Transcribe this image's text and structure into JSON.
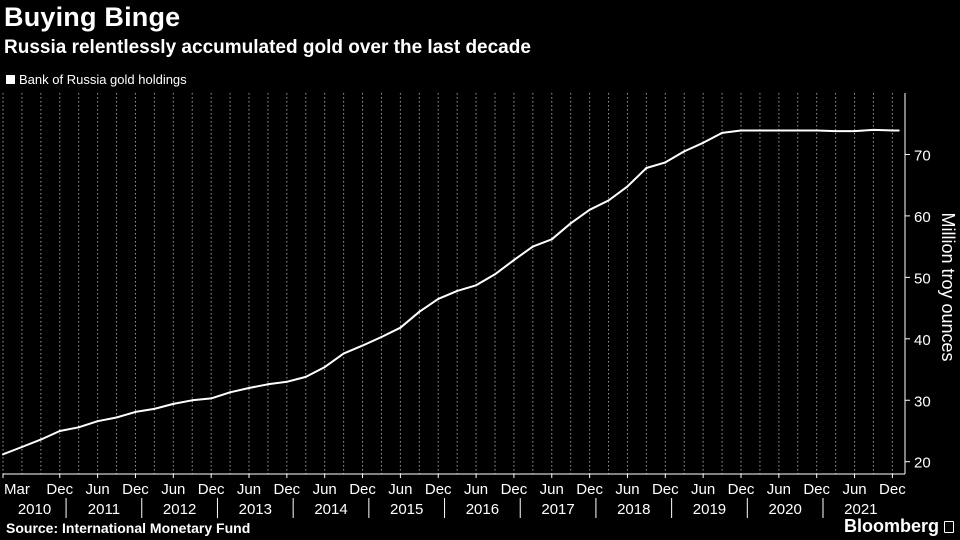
{
  "header": {
    "title": "Buying Binge",
    "subtitle": "Russia relentlessly accumulated gold over the last decade"
  },
  "legend": {
    "label": "Bank of Russia gold holdings"
  },
  "footer": {
    "source": "Source: International Monetary Fund",
    "brand": "Bloomberg"
  },
  "colors": {
    "background": "#000000",
    "line": "#ffffff",
    "grid": "#9a9a9a"
  },
  "chart_data": {
    "type": "line",
    "title": "Buying Binge",
    "subtitle": "Russia relentlessly accumulated gold over the last decade",
    "xlabel": "",
    "ylabel": "Million troy ounces",
    "ylim": [
      18,
      80
    ],
    "yticks": [
      20,
      30,
      40,
      50,
      60,
      70
    ],
    "xrange": [
      "2010-03",
      "2022-02"
    ],
    "month_ticks": [
      "Mar",
      "Dec",
      "Jun",
      "Dec",
      "Jun",
      "Dec",
      "Jun",
      "Dec",
      "Jun",
      "Dec",
      "Jun",
      "Dec",
      "Jun",
      "Dec",
      "Jun",
      "Dec",
      "Jun",
      "Dec",
      "Jun",
      "Dec",
      "Jun",
      "Dec",
      "Jun",
      "Dec"
    ],
    "month_tick_dates": [
      "2010-03",
      "2010-12",
      "2011-06",
      "2011-12",
      "2012-06",
      "2012-12",
      "2013-06",
      "2013-12",
      "2014-06",
      "2014-12",
      "2015-06",
      "2015-12",
      "2016-06",
      "2016-12",
      "2017-06",
      "2017-12",
      "2018-06",
      "2018-12",
      "2019-06",
      "2019-12",
      "2020-06",
      "2020-12",
      "2021-06",
      "2021-12"
    ],
    "year_ticks": [
      "2010",
      "2011",
      "2012",
      "2013",
      "2014",
      "2015",
      "2016",
      "2017",
      "2018",
      "2019",
      "2020",
      "2021"
    ],
    "grid": true,
    "legend_position": "top-left",
    "series": [
      {
        "name": "Bank of Russia gold holdings",
        "x": [
          "2010-03",
          "2010-06",
          "2010-09",
          "2010-12",
          "2011-03",
          "2011-06",
          "2011-09",
          "2011-12",
          "2012-03",
          "2012-06",
          "2012-09",
          "2012-12",
          "2013-03",
          "2013-06",
          "2013-09",
          "2013-12",
          "2014-03",
          "2014-06",
          "2014-09",
          "2014-12",
          "2015-03",
          "2015-06",
          "2015-09",
          "2015-12",
          "2016-03",
          "2016-06",
          "2016-09",
          "2016-12",
          "2017-03",
          "2017-06",
          "2017-09",
          "2017-12",
          "2018-03",
          "2018-06",
          "2018-09",
          "2018-12",
          "2019-03",
          "2019-06",
          "2019-09",
          "2019-12",
          "2020-03",
          "2020-06",
          "2020-09",
          "2020-12",
          "2021-03",
          "2021-06",
          "2021-09",
          "2021-12",
          "2022-01"
        ],
        "values": [
          21.2,
          22.4,
          23.6,
          25.0,
          25.6,
          26.6,
          27.2,
          28.1,
          28.6,
          29.4,
          30.0,
          30.3,
          31.3,
          32.0,
          32.6,
          33.0,
          33.8,
          35.4,
          37.6,
          38.9,
          40.3,
          41.8,
          44.4,
          46.5,
          47.8,
          48.7,
          50.5,
          52.8,
          55.0,
          56.2,
          58.8,
          61.0,
          62.5,
          64.8,
          67.8,
          68.7,
          70.5,
          71.9,
          73.5,
          73.9,
          73.9,
          73.9,
          73.9,
          73.9,
          73.8,
          73.8,
          74.0,
          73.9,
          73.9
        ]
      }
    ]
  }
}
